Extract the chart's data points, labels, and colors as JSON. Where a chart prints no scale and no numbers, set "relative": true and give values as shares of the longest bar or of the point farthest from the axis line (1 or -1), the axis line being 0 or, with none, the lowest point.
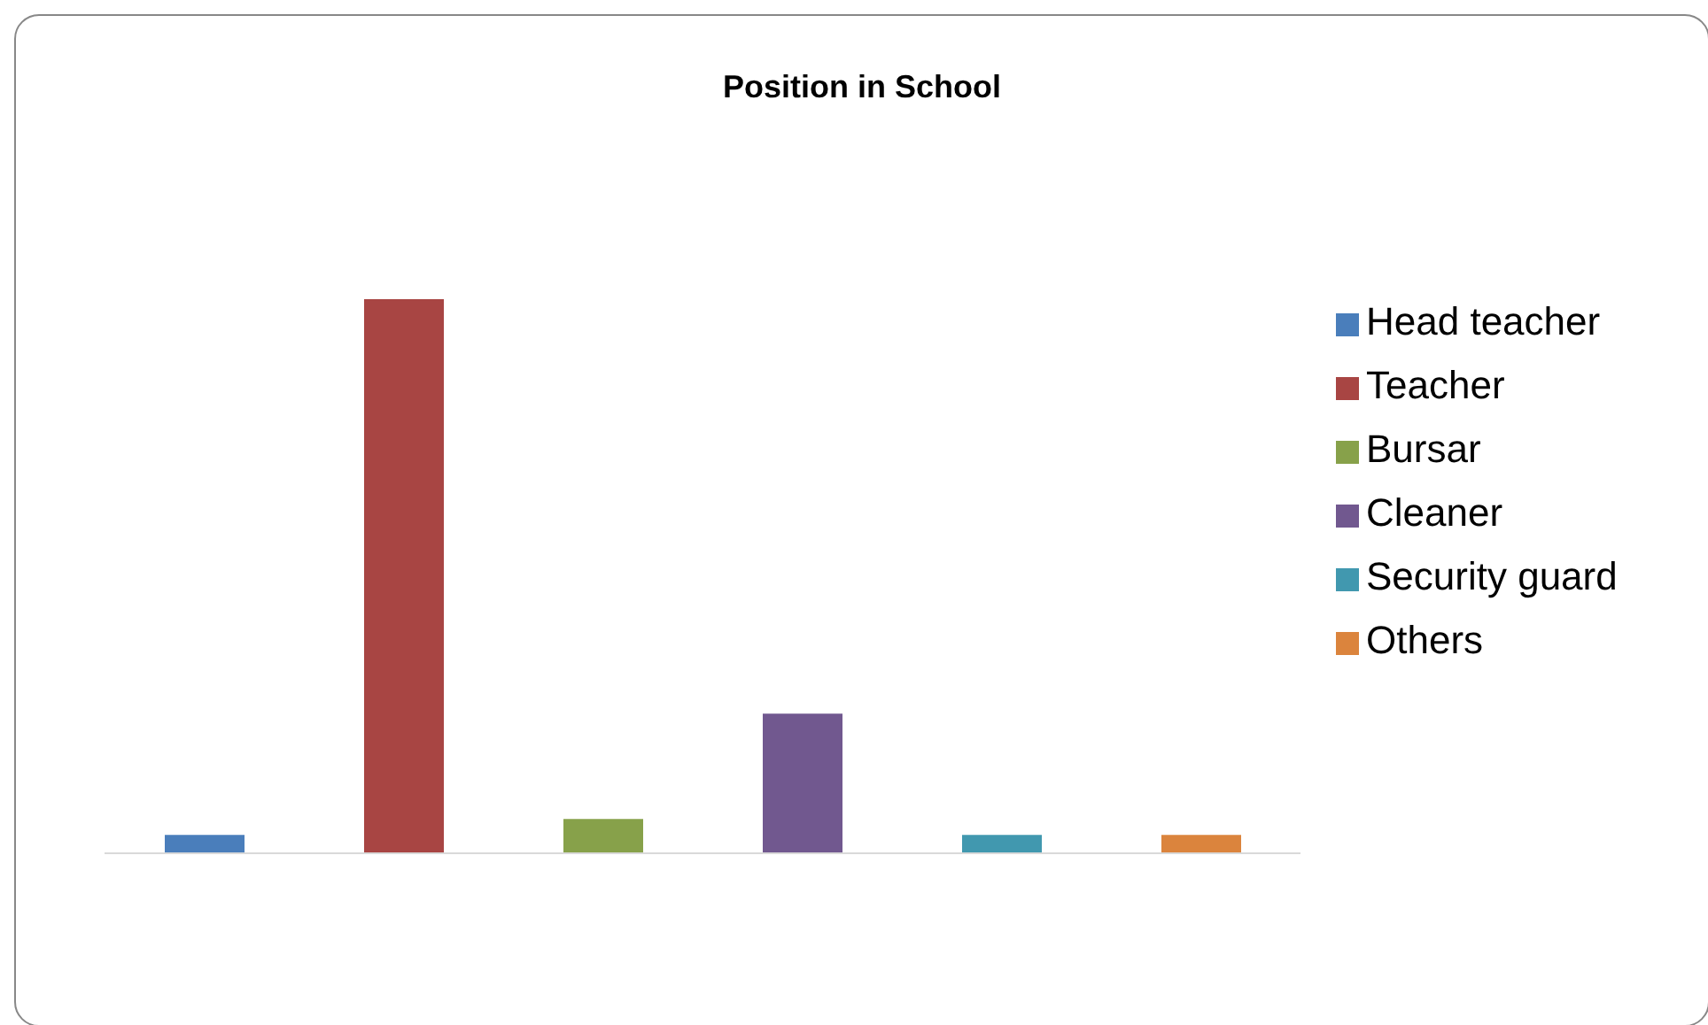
{
  "chart_data": {
    "type": "bar",
    "title": "Position in School",
    "relative": true,
    "stacked": true,
    "categories": [
      null,
      null,
      null,
      null,
      null,
      null
    ],
    "legend": "right",
    "series": [
      {
        "name": "Head teacher",
        "color": "#4a7ebb",
        "values": [
          0.033,
          null,
          null,
          null,
          null,
          null
        ]
      },
      {
        "name": "Teacher",
        "color": "#a84543",
        "values": [
          null,
          1,
          null,
          null,
          null,
          null
        ]
      },
      {
        "name": "Bursar",
        "color": "#87a14a",
        "values": [
          null,
          null,
          0.062,
          null,
          null,
          null
        ]
      },
      {
        "name": "Cleaner",
        "color": "#71588f",
        "values": [
          null,
          null,
          null,
          0.252,
          null,
          null
        ]
      },
      {
        "name": "Security guard",
        "color": "#4198af",
        "values": [
          null,
          null,
          null,
          null,
          0.033,
          null
        ]
      },
      {
        "name": "Others",
        "color": "#db843d",
        "values": [
          null,
          null,
          null,
          null,
          null,
          0.033
        ]
      }
    ]
  }
}
